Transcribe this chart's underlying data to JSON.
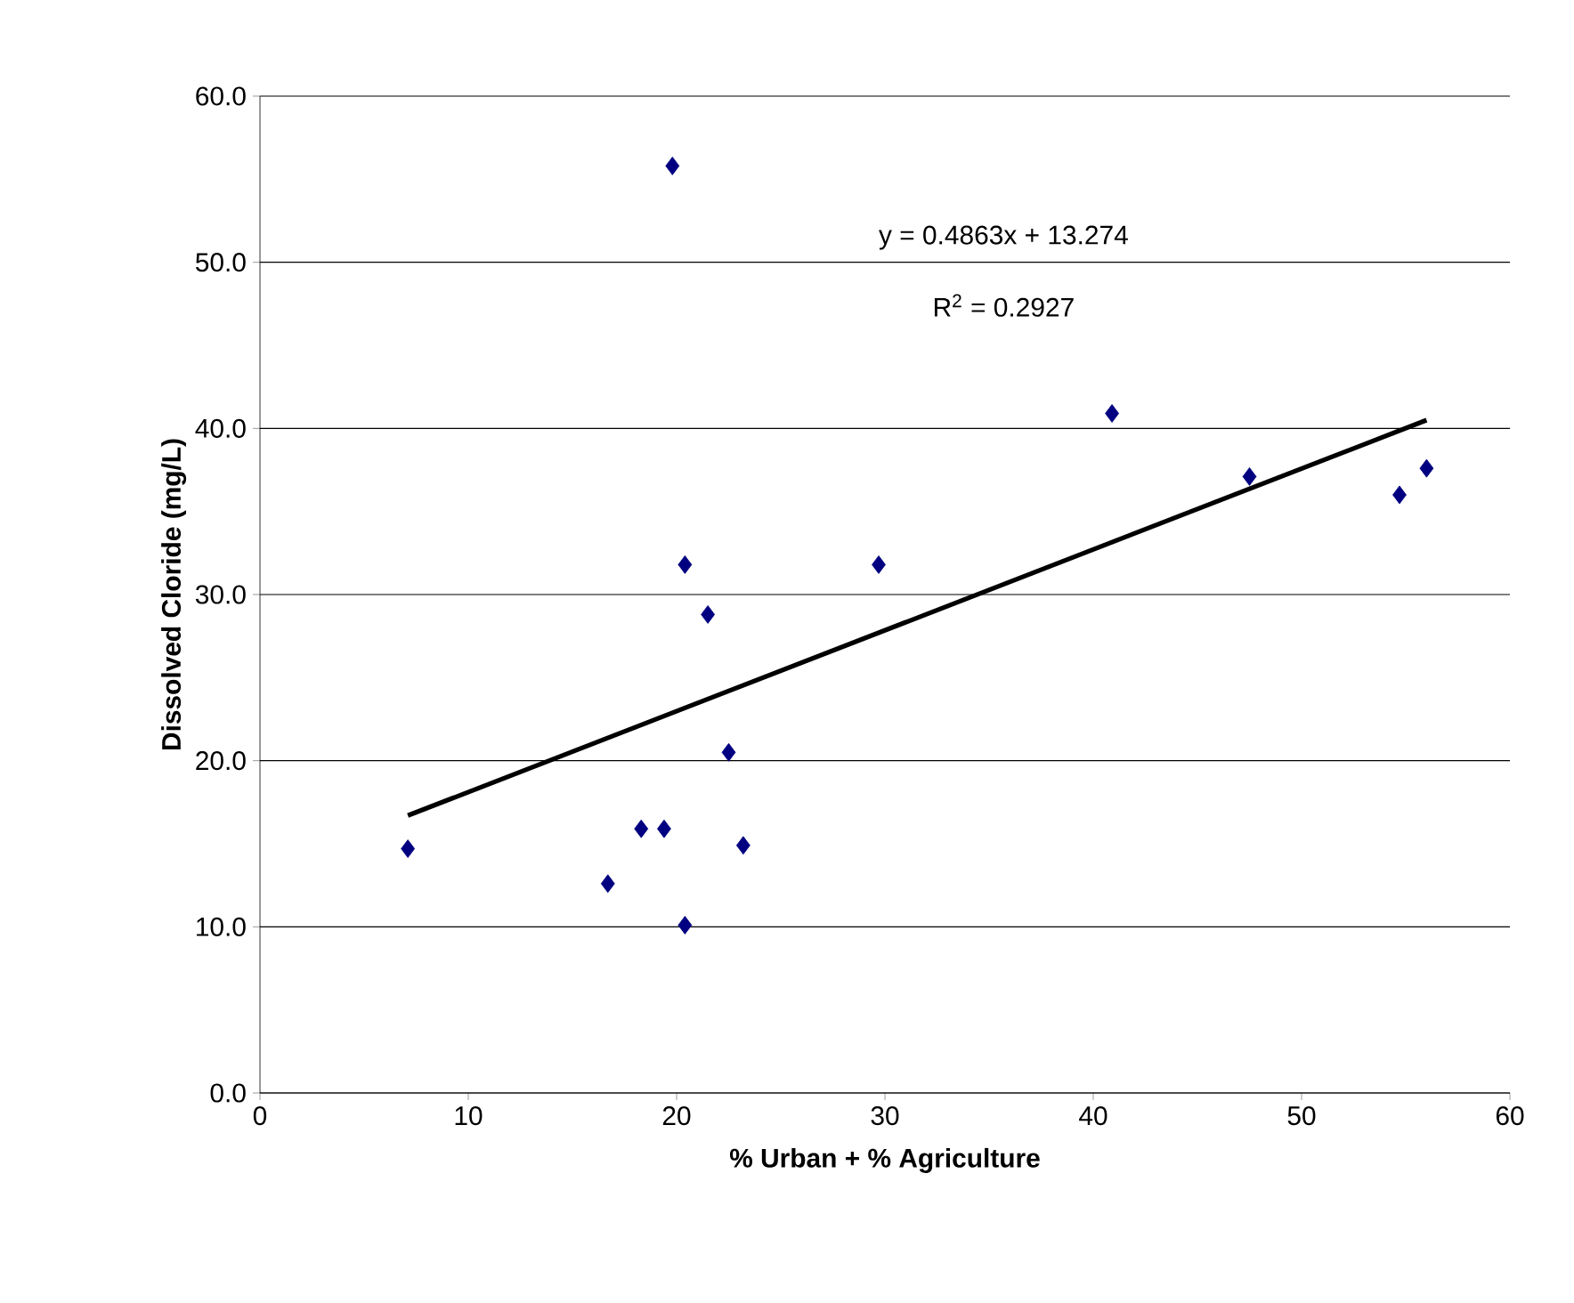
{
  "chart_data": {
    "type": "scatter",
    "xlabel": "% Urban + % Agriculture",
    "ylabel": "Dissolved Cloride (mg/L)",
    "xlim": [
      0,
      60
    ],
    "xticks": [
      0,
      10,
      20,
      30,
      40,
      50,
      60
    ],
    "ylim": [
      0,
      60
    ],
    "yticks": [
      {
        "value": 0,
        "label": "0.0"
      },
      {
        "value": 10,
        "label": "10.0"
      },
      {
        "value": 20,
        "label": "20.0"
      },
      {
        "value": 30,
        "label": "30.0"
      },
      {
        "value": 40,
        "label": "40.0"
      },
      {
        "value": 50,
        "label": "50.0"
      },
      {
        "value": 60,
        "label": "60.0"
      }
    ],
    "grid": "y",
    "annotations": [
      "y = 0.4863x + 13.274",
      "R$^{2}$ = 0.2927"
    ],
    "series": [
      {
        "marker": "diamond",
        "color": "#000080",
        "x": [
          7.1,
          16.7,
          18.3,
          19.4,
          19.8,
          20.4,
          20.4,
          21.5,
          22.5,
          23.2,
          29.7,
          40.9,
          47.5,
          54.7,
          56.0
        ],
        "values": [
          14.7,
          12.6,
          15.9,
          15.9,
          55.8,
          31.8,
          10.1,
          28.8,
          20.5,
          14.9,
          31.8,
          40.9,
          37.1,
          36.0,
          37.6
        ]
      },
      {
        "type": "line",
        "color": "#000000",
        "x": [
          7.1,
          56.0
        ],
        "values": [
          16.7,
          40.5
        ]
      }
    ]
  }
}
